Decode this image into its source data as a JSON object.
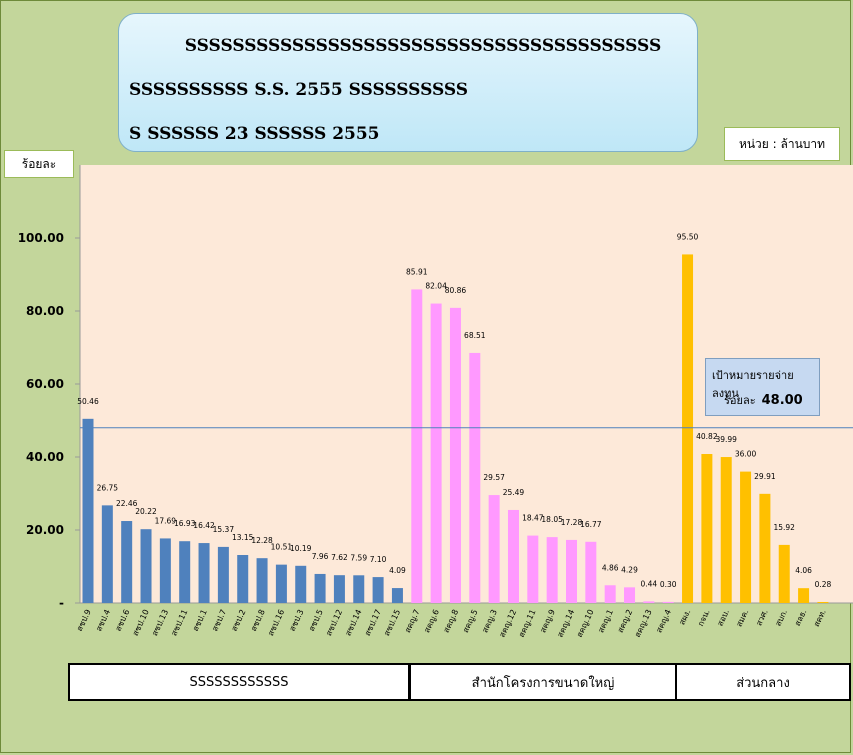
{
  "title": {
    "line1": "SSSSSSSSSSSSSSSSSSSSSSSSSSSSSSSSSSSSSSSS",
    "line2": "SSSSSSSSSS S.S. 2555 SSSSSSSSSS",
    "line3": "S SSSSSS  23 SSSSSS  2555"
  },
  "unit_label": "หน่วย  :  ล้านบาท",
  "y_axis_label": "ร้อยละ",
  "target": {
    "label": "เป้าหมายรายจ่ายลงทุน",
    "prefix": "ร้อยละ",
    "value_text": "48.00"
  },
  "groups": [
    {
      "label": "SSSSSSSSSSSS"
    },
    {
      "label": "สำนักโครงการขนาดใหญ่"
    },
    {
      "label": "ส่วนกลาง"
    }
  ],
  "colors": {
    "plot_bg": "#fde9d9",
    "page_bg": "#c3d69b",
    "blue": "#4f81bd",
    "pink": "#ff99ff",
    "gold": "#ffc000",
    "target_line": "#4f81bd"
  },
  "chart_data": {
    "type": "bar",
    "ylabel": "ร้อยละ",
    "ylim": [
      0,
      120
    ],
    "y_ticks": [
      0,
      20,
      40,
      60,
      80,
      100
    ],
    "y_tick_labels": [
      "-",
      "20.00",
      "40.00",
      "60.00",
      "80.00",
      "100.00"
    ],
    "grid": false,
    "target_line": 48.0,
    "categories": [
      "สชป.9",
      "สชป.4",
      "สชป.6",
      "สชป.10",
      "สชป.13",
      "สชป.11",
      "สชป.1",
      "สชป.7",
      "สชป.2",
      "สชป.8",
      "สชป.16",
      "สชป.3",
      "สชป.5",
      "สชป.12",
      "สชป.14",
      "สชป.17",
      "สชป.15",
      "สคญ.7",
      "สคญ.6",
      "สคญ.8",
      "สคญ.5",
      "สคญ.3",
      "สคญ.12",
      "สคญ.11",
      "สคญ.9",
      "สคญ.14",
      "สคญ.10",
      "สคญ.1",
      "สคญ.2",
      "สคญ.13",
      "สคญ.4",
      "สผง.",
      "กจน.",
      "สอบ.",
      "สมค.",
      "สวศ.",
      "สบก.",
      "สลธ.",
      "สคท."
    ],
    "values": [
      50.46,
      26.75,
      22.46,
      20.22,
      17.69,
      16.93,
      16.42,
      15.37,
      13.15,
      12.28,
      10.51,
      10.19,
      7.96,
      7.62,
      7.59,
      7.1,
      4.09,
      85.91,
      82.04,
      80.86,
      68.51,
      29.57,
      25.49,
      18.47,
      18.05,
      17.28,
      16.77,
      4.86,
      4.29,
      0.44,
      0.3,
      95.5,
      40.82,
      39.99,
      36.0,
      29.91,
      15.92,
      4.06,
      0.28
    ],
    "value_labels": [
      "50.46",
      "26.75",
      "22.46",
      "20.22",
      "17.69",
      "16.93",
      "16.42",
      "15.37",
      "13.15",
      "12.28",
      "10.51",
      "10.19",
      "7.96",
      "7.62",
      "7.59",
      "7.10",
      "4.09",
      "85.91",
      "82.04",
      "80.86",
      "68.51",
      "29.57",
      "25.49",
      "18.47",
      "18.05",
      "17.28",
      "16.77",
      "4.86",
      "4.29",
      "0.44",
      "0.30",
      "95.50",
      "40.82",
      "39.99",
      "36.00",
      "29.91",
      "15.92",
      "4.06",
      "0.28"
    ],
    "bar_colors": [
      "#4f81bd",
      "#4f81bd",
      "#4f81bd",
      "#4f81bd",
      "#4f81bd",
      "#4f81bd",
      "#4f81bd",
      "#4f81bd",
      "#4f81bd",
      "#4f81bd",
      "#4f81bd",
      "#4f81bd",
      "#4f81bd",
      "#4f81bd",
      "#4f81bd",
      "#4f81bd",
      "#4f81bd",
      "#ff99ff",
      "#ff99ff",
      "#ff99ff",
      "#ff99ff",
      "#ff99ff",
      "#ff99ff",
      "#ff99ff",
      "#ff99ff",
      "#ff99ff",
      "#ff99ff",
      "#ff99ff",
      "#ff99ff",
      "#ff99ff",
      "#ff99ff",
      "#ffc000",
      "#ffc000",
      "#ffc000",
      "#ffc000",
      "#ffc000",
      "#ffc000",
      "#ffc000",
      "#ffc000"
    ]
  }
}
